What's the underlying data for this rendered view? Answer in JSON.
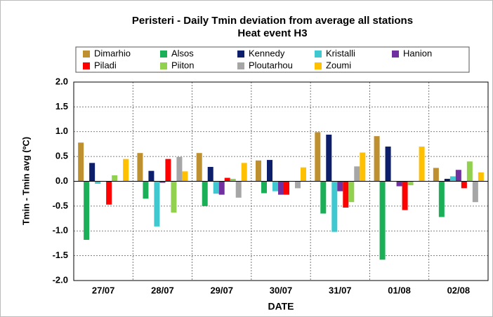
{
  "chart_data": {
    "type": "bar",
    "title": "Peristeri - Daily Tmin deviation from average all stations",
    "subtitle": "Heat event H3",
    "x_label": "DATE",
    "y_label": "Tmin - Tmin avg (ºC)",
    "categories": [
      "27/07",
      "28/07",
      "29/07",
      "30/07",
      "31/07",
      "01/08",
      "02/08"
    ],
    "series": [
      {
        "name": "Dimarhio",
        "color": "#bf9030",
        "values": [
          0.78,
          0.57,
          0.57,
          0.42,
          0.99,
          0.91,
          0.27
        ]
      },
      {
        "name": "Alsos",
        "color": "#1bb058",
        "values": [
          -1.18,
          -0.35,
          -0.5,
          -0.24,
          -0.65,
          -1.58,
          -0.72
        ]
      },
      {
        "name": "Kennedy",
        "color": "#0d1f6b",
        "values": [
          0.37,
          0.21,
          0.29,
          0.43,
          0.94,
          0.7,
          0.05
        ]
      },
      {
        "name": "Kristalli",
        "color": "#40c8d0",
        "values": [
          -0.05,
          -0.91,
          -0.25,
          -0.2,
          -1.02,
          0.0,
          0.1
        ]
      },
      {
        "name": "Hanion",
        "color": "#7030a0",
        "values": [
          0.0,
          -0.03,
          -0.27,
          -0.27,
          -0.2,
          -0.1,
          0.23
        ]
      },
      {
        "name": "Piladi",
        "color": "#ff0000",
        "values": [
          -0.47,
          0.45,
          0.07,
          -0.27,
          -0.53,
          -0.58,
          -0.14
        ]
      },
      {
        "name": "Piiton",
        "color": "#92d050",
        "values": [
          0.12,
          -0.63,
          0.05,
          0.0,
          -0.42,
          -0.08,
          0.4
        ]
      },
      {
        "name": "Ploutarhou",
        "color": "#a6a6a6",
        "values": [
          0.0,
          0.49,
          -0.33,
          -0.14,
          0.3,
          0.0,
          -0.42
        ]
      },
      {
        "name": "Zoumi",
        "color": "#ffc000",
        "values": [
          0.45,
          0.2,
          0.37,
          0.28,
          0.58,
          0.7,
          0.18
        ]
      }
    ],
    "ylim": [
      -2.0,
      2.0
    ],
    "yticks": [
      {
        "value": -2.0,
        "label": "-2.0"
      },
      -1.5,
      {
        "value": -1.0,
        "label": "-1.0"
      },
      -0.5,
      {
        "value": 0.0,
        "label": "0.0"
      },
      0.5,
      {
        "value": 1.0,
        "label": "1.0"
      },
      1.5,
      {
        "value": 2.0,
        "label": "2.0"
      }
    ],
    "grid": true
  }
}
